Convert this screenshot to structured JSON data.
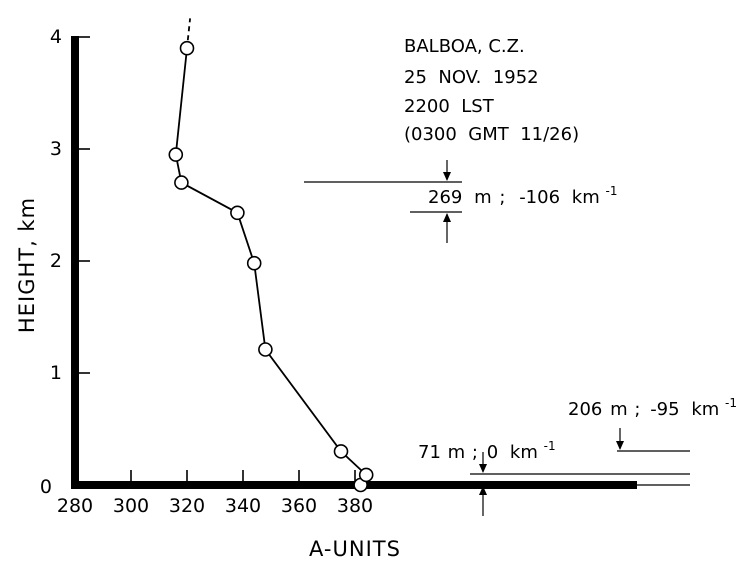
{
  "chart_data": {
    "type": "line",
    "title": "",
    "xlabel": "A-UNITS",
    "ylabel": "HEIGHT, km",
    "xlim": [
      280,
      380
    ],
    "ylim": [
      0,
      4
    ],
    "x_ticks": [
      "280",
      "300",
      "320",
      "340",
      "360",
      "380"
    ],
    "y_ticks": [
      "0",
      "1",
      "2",
      "3",
      "4"
    ],
    "grid": false,
    "series": [
      {
        "points": [
          {
            "x": 382,
            "y": 0.0
          },
          {
            "x": 384,
            "y": 0.09
          },
          {
            "x": 375,
            "y": 0.3
          },
          {
            "x": 348,
            "y": 1.21
          },
          {
            "x": 344,
            "y": 1.98
          },
          {
            "x": 338,
            "y": 2.43
          },
          {
            "x": 318,
            "y": 2.7
          },
          {
            "x": 316,
            "y": 2.95
          },
          {
            "x": 320,
            "y": 3.9
          }
        ]
      }
    ],
    "header_lines": [
      "BALBOA, C.Z.",
      "25  NOV.  1952",
      "2200  LST",
      "(0300  GMT  11/26)"
    ],
    "annotations": {
      "upper_layer": {
        "depth": "269",
        "unit": "m",
        "sep": ";",
        "gradient": "-106",
        "gradient_unit": "km",
        "exponent": "-1"
      },
      "middle_layer": {
        "depth": "206",
        "unit": "m",
        "sep": ";",
        "gradient": "-95",
        "gradient_unit": "km",
        "exponent": "-1"
      },
      "surface_layer": {
        "depth": "71",
        "unit": "m",
        "sep": ";",
        "gradient": "0",
        "gradient_unit": "km",
        "exponent": "-1"
      }
    }
  }
}
